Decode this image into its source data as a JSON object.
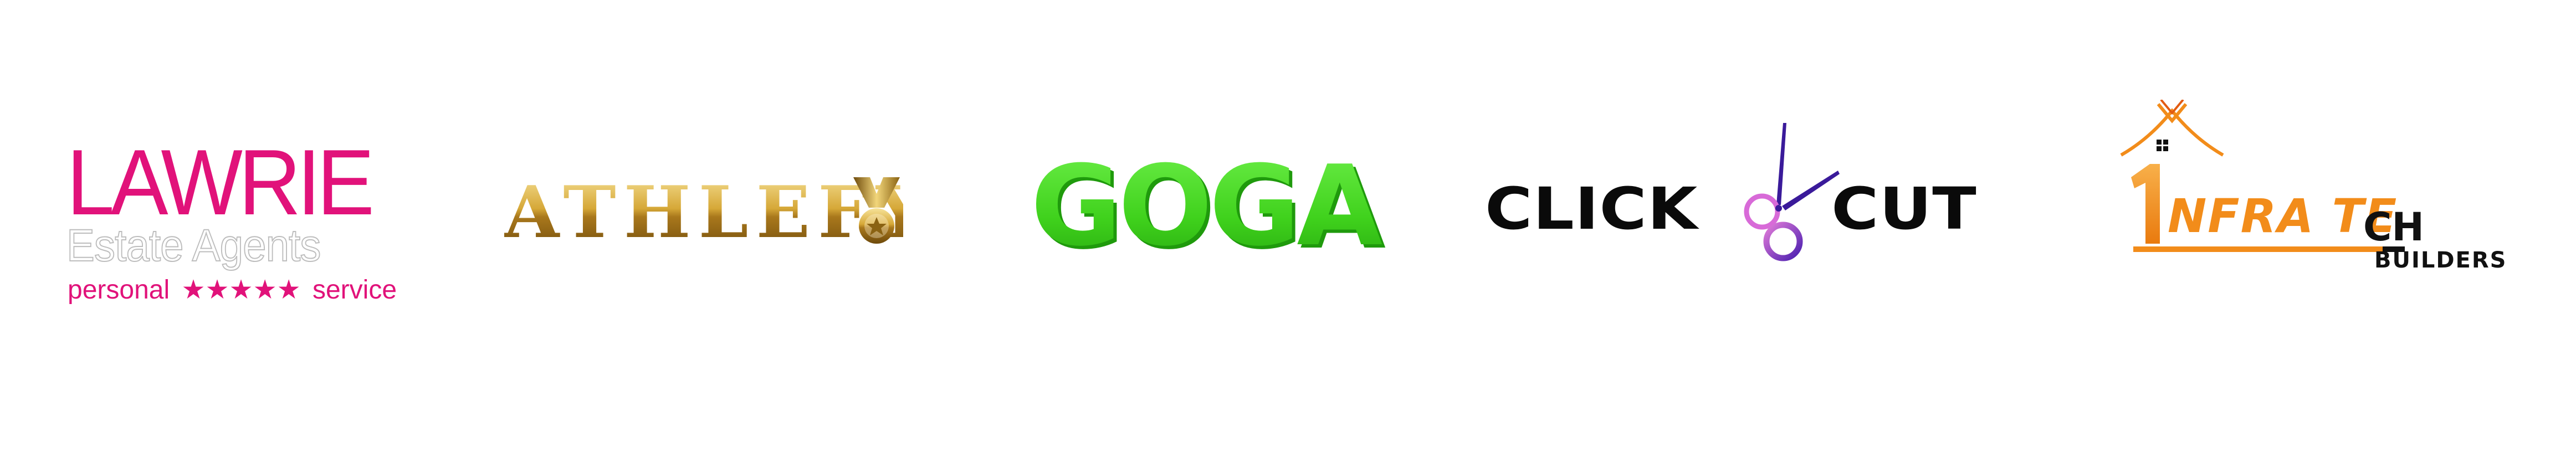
{
  "logos": [
    {
      "id": "lawrie",
      "name": "LAWRIE",
      "subtitle": "Estate Agents",
      "tagline_left": "personal",
      "tagline_stars": "★★★★★",
      "tagline_right": "service",
      "colors": {
        "primary": "#e1127a",
        "outline": "#bdbdbd"
      }
    },
    {
      "id": "athlefy",
      "name": "ATHLEFY",
      "icon": "medal-icon",
      "colors": {
        "gold_light": "#f5e08a",
        "gold_dark": "#8a6212"
      }
    },
    {
      "id": "goga",
      "name": "GOGA",
      "colors": {
        "green": "#3fd11c",
        "green_dark": "#1f9a0c"
      }
    },
    {
      "id": "clickcut",
      "left_word": "CLICK",
      "right_word": "CUT",
      "icon": "scissors-icon",
      "colors": {
        "text": "#0a0a0a",
        "scissor_pink": "#d86ad8",
        "scissor_purple": "#4b1fb0"
      }
    },
    {
      "id": "infratech",
      "digit": "1",
      "word": "NFRA TE",
      "word_suffix": "CH",
      "sub": "BUILDERS",
      "icon": "house-roof-icon",
      "colors": {
        "orange": "#f28c1a",
        "dark": "#111111"
      }
    }
  ]
}
